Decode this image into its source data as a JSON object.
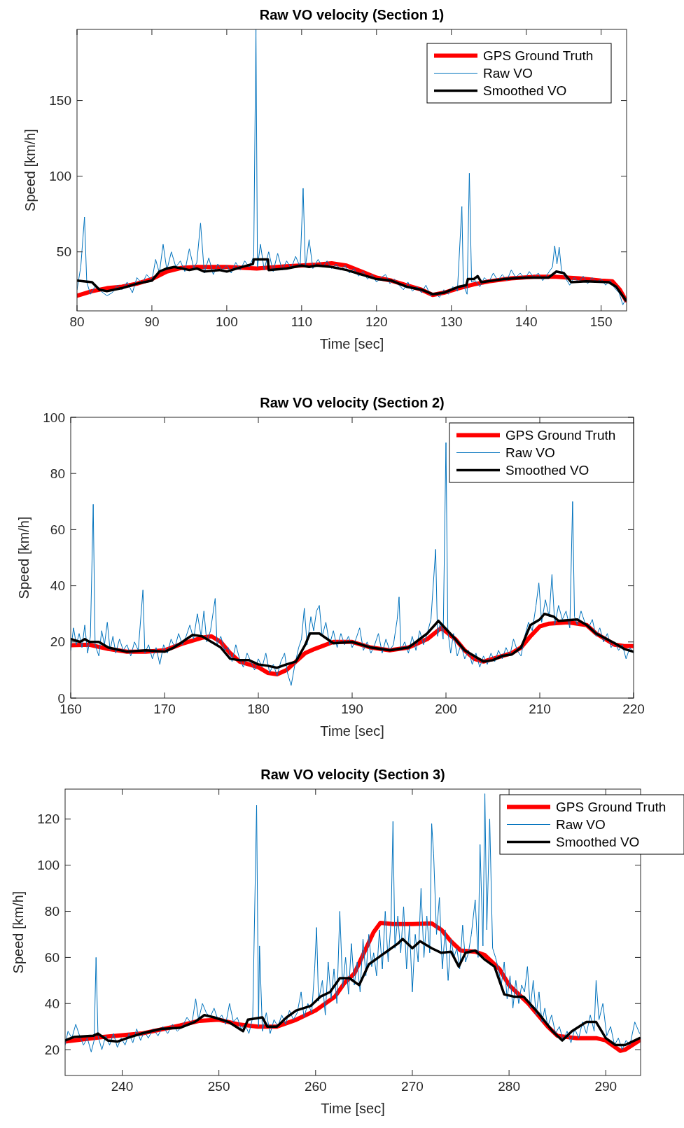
{
  "chart_data": [
    {
      "type": "line",
      "title": "Raw VO velocity (Section 1)",
      "xlabel": "Time [sec]",
      "ylabel": "Speed [km/h]",
      "xlim": [
        80,
        153.4
      ],
      "xticks": [
        80,
        90,
        100,
        110,
        120,
        130,
        140,
        150
      ],
      "ylim": [
        11,
        197
      ],
      "yticks": [
        50,
        100,
        150
      ],
      "legend": "top right",
      "series": [
        {
          "name": "GPS Ground Truth",
          "color": "#ff0000",
          "x": [
            80,
            82,
            84,
            86,
            88,
            90,
            92,
            94,
            96,
            100,
            104,
            108,
            112,
            114,
            116,
            118,
            120,
            122,
            124,
            126,
            127.5,
            129,
            131,
            133,
            135,
            138,
            141,
            144,
            147,
            150,
            151.5,
            152.5,
            153.3
          ],
          "values": [
            21,
            24,
            26,
            27,
            29,
            32,
            37,
            39.5,
            40,
            40,
            39,
            40.5,
            41.5,
            42.5,
            41,
            37,
            33,
            31,
            28,
            25,
            21.5,
            23,
            26,
            28.5,
            30.5,
            32.5,
            33.5,
            33.5,
            32.5,
            31,
            30.5,
            25,
            18
          ]
        },
        {
          "name": "Raw VO",
          "color": "#0072bd",
          "x": [
            80,
            80.5,
            81,
            81.3,
            81.8,
            82.5,
            83.2,
            84,
            84.7,
            85.4,
            86,
            86.7,
            87.4,
            88,
            88.7,
            89.3,
            90,
            90.5,
            91,
            91.5,
            92,
            92.6,
            93.2,
            93.8,
            94.4,
            95,
            95.6,
            96,
            96.5,
            97,
            97.6,
            98.2,
            98.8,
            99.4,
            100,
            100.6,
            101.2,
            101.8,
            102.4,
            103,
            103.6,
            103.9,
            104.1,
            104.5,
            105,
            105.6,
            106.2,
            106.8,
            107.4,
            108,
            108.6,
            109.2,
            109.8,
            110.2,
            110.5,
            111,
            111.5,
            112.2,
            112.8,
            113.4,
            114,
            114.6,
            115.2,
            115.8,
            116.4,
            117,
            117.6,
            118.2,
            118.8,
            119.4,
            120,
            120.6,
            121.2,
            121.8,
            122.4,
            123,
            123.6,
            124.2,
            124.8,
            125.4,
            126,
            126.6,
            127.2,
            127.8,
            128.4,
            129,
            129.6,
            130.2,
            130.8,
            131.4,
            131.6,
            132.1,
            132.4,
            132.7,
            133.2,
            133.8,
            134.4,
            135,
            135.6,
            136.2,
            136.8,
            137.4,
            138,
            138.6,
            139.2,
            139.8,
            140.4,
            141,
            141.6,
            142.2,
            142.8,
            143.5,
            143.8,
            144.1,
            144.4,
            144.7,
            145.2,
            145.8,
            146.4,
            147,
            147.6,
            148.2,
            148.8,
            149.4,
            150,
            150.6,
            151.2,
            151.8,
            152.4,
            152.9,
            153.3
          ],
          "values": [
            25,
            40,
            73,
            30,
            22,
            28,
            24,
            21,
            23,
            28,
            25,
            30,
            23,
            33,
            29,
            35,
            31,
            45,
            36,
            55,
            38,
            50,
            40,
            44,
            37,
            52,
            39,
            43,
            69,
            36,
            46,
            35,
            42,
            38,
            41,
            36,
            43,
            38,
            44,
            40,
            47,
            197,
            40,
            55,
            38,
            50,
            37,
            49,
            38,
            44,
            39,
            47,
            40,
            92,
            40,
            58,
            39,
            45,
            40,
            44,
            39,
            42,
            38,
            41,
            36,
            39,
            34,
            37,
            32,
            35,
            30,
            33,
            35,
            29,
            32,
            28,
            25,
            30,
            24,
            27,
            23,
            28,
            21,
            23,
            20,
            25,
            22,
            27,
            24,
            80,
            28,
            22,
            102,
            30,
            31,
            27,
            33,
            30,
            36,
            31,
            35,
            31,
            38,
            33,
            36,
            32,
            37,
            33,
            36,
            31,
            35,
            40,
            54,
            42,
            53,
            38,
            33,
            28,
            33,
            30,
            34,
            29,
            33,
            30,
            32,
            28,
            31,
            26,
            23,
            15,
            19
          ]
        },
        {
          "name": "Smoothed VO",
          "color": "#000000",
          "x": [
            80,
            82,
            83,
            84,
            86,
            88,
            90,
            91,
            92,
            93,
            95,
            96,
            97,
            99,
            100,
            102,
            103.5,
            103.6,
            105.5,
            105.6,
            108,
            110,
            111,
            112,
            114,
            116,
            118,
            120,
            122,
            124,
            126,
            127.5,
            129,
            131,
            132,
            132.2,
            133,
            133.5,
            134,
            137,
            140,
            143,
            144,
            145,
            146,
            148,
            151,
            152,
            153.3
          ],
          "values": [
            31,
            30,
            25,
            24,
            26,
            29,
            31,
            37,
            39,
            40,
            38,
            39,
            37,
            38,
            37,
            40,
            42,
            45,
            45,
            38,
            39,
            41,
            40,
            41,
            40,
            38,
            35,
            32,
            31,
            27,
            25,
            22,
            23,
            27,
            28,
            32,
            32,
            34,
            30,
            32,
            33,
            33,
            37,
            36,
            30,
            30.5,
            30,
            27,
            18
          ]
        }
      ]
    },
    {
      "type": "line",
      "title": "Raw VO velocity (Section 2)",
      "xlabel": "Time [sec]",
      "ylabel": "Speed [km/h]",
      "xlim": [
        160,
        220
      ],
      "xticks": [
        160,
        170,
        180,
        190,
        200,
        210,
        220
      ],
      "ylim": [
        0,
        100
      ],
      "yticks": [
        0,
        20,
        40,
        60,
        80,
        100
      ],
      "legend": "top right",
      "series": [
        {
          "name": "GPS Ground Truth",
          "color": "#ff0000",
          "x": [
            160,
            162,
            164,
            166,
            168,
            170,
            172,
            174,
            175,
            176,
            177,
            178,
            180,
            181,
            182,
            183,
            184,
            185,
            186,
            188,
            190,
            192,
            194,
            196,
            198,
            199.5,
            201,
            202,
            203,
            204,
            205,
            207,
            208,
            209,
            210,
            211,
            213,
            215,
            216,
            218,
            219,
            220
          ],
          "values": [
            18.8,
            19,
            17.5,
            16.5,
            16.5,
            17,
            19.5,
            21.5,
            22,
            20,
            16,
            13,
            11,
            9,
            8.5,
            10,
            13,
            16,
            17.5,
            20,
            20,
            18,
            17,
            18,
            21,
            25,
            21,
            17,
            14,
            13,
            14,
            16,
            18,
            22,
            25.5,
            26.5,
            27,
            26,
            23,
            19,
            18.5,
            18.5
          ]
        },
        {
          "name": "Raw VO",
          "color": "#0072bd",
          "x": [
            160,
            160.3,
            160.6,
            160.9,
            161.2,
            161.5,
            161.8,
            162.1,
            162.4,
            162.6,
            163,
            163.3,
            163.6,
            163.9,
            164.2,
            164.5,
            164.8,
            165.2,
            165.6,
            166,
            166.4,
            166.8,
            167.2,
            167.7,
            167.9,
            168.3,
            168.7,
            169.1,
            169.5,
            169.9,
            170.3,
            170.7,
            171.1,
            171.5,
            171.9,
            172.3,
            172.7,
            173.1,
            173.5,
            173.9,
            174.2,
            174.5,
            174.9,
            175.4,
            175.6,
            176,
            176.4,
            176.8,
            177.2,
            177.6,
            178,
            178.4,
            178.8,
            179.2,
            179.6,
            180,
            180.4,
            180.8,
            181.2,
            181.6,
            182,
            182.4,
            182.8,
            183.1,
            183.5,
            183.9,
            184.3,
            184.6,
            184.9,
            185.2,
            185.6,
            185.9,
            186.2,
            186.5,
            186.8,
            187.2,
            187.6,
            188,
            188.4,
            188.8,
            189.2,
            189.6,
            190,
            190.4,
            190.8,
            191.2,
            191.6,
            192,
            192.4,
            192.8,
            193.2,
            193.6,
            194,
            194.4,
            194.8,
            195,
            195.2,
            195.6,
            196,
            196.4,
            196.8,
            197.2,
            197.6,
            198,
            198.4,
            198.9,
            199.1,
            199.4,
            199.7,
            200,
            200.2,
            200.5,
            200.8,
            201.2,
            201.6,
            202,
            202.4,
            202.8,
            203.2,
            203.6,
            204,
            204.4,
            204.8,
            205.2,
            205.6,
            206,
            206.4,
            206.8,
            207.2,
            207.6,
            208,
            208.4,
            208.8,
            209.2,
            209.6,
            209.9,
            210.2,
            210.6,
            211,
            211.3,
            211.6,
            212,
            212.4,
            212.8,
            213.2,
            213.5,
            213.7,
            214,
            214.4,
            214.8,
            215.2,
            215.6,
            216,
            216.4,
            216.8,
            217.2,
            217.6,
            218,
            218.4,
            218.8,
            219.2,
            219.6,
            220
          ],
          "values": [
            17,
            25,
            19,
            23,
            18,
            26,
            16,
            22,
            69,
            19,
            15,
            24,
            19,
            27,
            17,
            22,
            16,
            21,
            17,
            19,
            15,
            20,
            17,
            38.5,
            16,
            19,
            14,
            18,
            12,
            19,
            16,
            21,
            18,
            23,
            19,
            22,
            26,
            21,
            30,
            22,
            31,
            20,
            24,
            35.5,
            19,
            22,
            17,
            18,
            13,
            19,
            14,
            11,
            16,
            13,
            10,
            14,
            11,
            16,
            9,
            12,
            8,
            13,
            16,
            9,
            4.5,
            12,
            18,
            21,
            32,
            19,
            29,
            24,
            31,
            33,
            22,
            27,
            19,
            24,
            18,
            23,
            19,
            22,
            18,
            21,
            25,
            17,
            20,
            16,
            19,
            23,
            16,
            21,
            17,
            19,
            28,
            36,
            17,
            20,
            16,
            22,
            17,
            24,
            19,
            23,
            28,
            53,
            22,
            27,
            21,
            91,
            24,
            16,
            23,
            15,
            19,
            14,
            17,
            12,
            16,
            11,
            15,
            12,
            16,
            13,
            17,
            14,
            18,
            15,
            21,
            17,
            15,
            22,
            27,
            24,
            33,
            41,
            27,
            35,
            29,
            44,
            26,
            33,
            28,
            31,
            25,
            70,
            29,
            26,
            31,
            27,
            25,
            28,
            22,
            25,
            20,
            23,
            18,
            20,
            17,
            19,
            14,
            18,
            16
          ]
        },
        {
          "name": "Smoothed VO",
          "color": "#000000",
          "x": [
            160,
            161,
            161.5,
            162,
            163,
            164,
            166,
            168,
            170,
            171,
            173,
            174,
            176,
            177,
            178,
            179,
            180,
            181,
            182,
            183,
            184,
            185,
            185.5,
            186.5,
            188,
            190,
            192,
            194,
            196,
            198,
            199.2,
            201,
            202,
            203,
            204,
            205,
            206,
            207,
            208,
            209,
            210,
            210.5,
            211.5,
            212,
            214,
            215,
            216,
            218,
            219,
            220
          ],
          "values": [
            21,
            20,
            21,
            20,
            20,
            18,
            16.5,
            17,
            16.5,
            18,
            22.5,
            22,
            18,
            14,
            13.5,
            13.5,
            12,
            11.5,
            10.8,
            12,
            13,
            19,
            23,
            23,
            19.5,
            20,
            18,
            17,
            18,
            23,
            27.5,
            21,
            17,
            15,
            13,
            13.5,
            15,
            15.5,
            18,
            26,
            28,
            30,
            29,
            27.5,
            28,
            26,
            23,
            19.5,
            17.5,
            16.5
          ]
        }
      ]
    },
    {
      "type": "line",
      "title": "Raw VO velocity (Section 3)",
      "xlabel": "Time [sec]",
      "ylabel": "Speed [km/h]",
      "xlim": [
        234.1,
        293.6
      ],
      "xticks": [
        240,
        250,
        260,
        270,
        280,
        290
      ],
      "ylim": [
        8.8,
        133
      ],
      "yticks": [
        20,
        40,
        60,
        80,
        100,
        120
      ],
      "legend": "top right",
      "series": [
        {
          "name": "GPS Ground Truth",
          "color": "#ff0000",
          "x": [
            234.1,
            238,
            242,
            246,
            248,
            250,
            252,
            254,
            256,
            258,
            260,
            262,
            263,
            264,
            265,
            266,
            266.7,
            268,
            270,
            272,
            273,
            274,
            275,
            276.5,
            277.5,
            279,
            280,
            282,
            284,
            285,
            287,
            289,
            290,
            291,
            291.5,
            292,
            293.5
          ],
          "values": [
            23.5,
            25.5,
            27,
            30.5,
            32.5,
            33,
            31,
            30,
            30,
            33,
            37,
            43,
            49,
            53,
            62,
            71,
            75,
            74.5,
            74.5,
            74.8,
            72,
            67,
            63,
            62.5,
            61,
            55,
            48,
            40,
            30,
            26,
            25,
            25,
            24,
            21,
            19.5,
            20,
            24
          ]
        },
        {
          "name": "Raw VO",
          "color": "#0072bd",
          "x": [
            234.1,
            234.4,
            234.8,
            235.2,
            235.6,
            236,
            236.4,
            236.8,
            237.1,
            237.3,
            237.5,
            237.9,
            238.3,
            238.7,
            239.1,
            239.5,
            239.9,
            240.3,
            240.7,
            241.1,
            241.5,
            241.9,
            242.3,
            242.7,
            243.2,
            243.7,
            244.2,
            244.7,
            245.2,
            245.7,
            246.2,
            246.7,
            247.2,
            247.6,
            247.9,
            248.3,
            248.7,
            249.1,
            249.5,
            249.9,
            250.3,
            250.7,
            251.1,
            251.5,
            251.9,
            252.3,
            252.7,
            253.1,
            253.5,
            253.9,
            254.1,
            254.2,
            254.5,
            254.9,
            255.3,
            255.7,
            256.1,
            256.5,
            256.9,
            257.3,
            257.7,
            258.1,
            258.5,
            258.8,
            259.2,
            259.6,
            259.9,
            260.1,
            260.3,
            260.7,
            261,
            261.3,
            261.6,
            261.9,
            262.2,
            262.5,
            262.8,
            263.1,
            263.4,
            263.7,
            264,
            264.3,
            264.6,
            264.9,
            265.2,
            265.5,
            265.8,
            266,
            266.3,
            266.6,
            266.9,
            267.2,
            267.5,
            267.8,
            268,
            268.2,
            268.5,
            268.8,
            269.1,
            269.4,
            269.7,
            270,
            270.3,
            270.6,
            270.9,
            271.2,
            271.5,
            271.8,
            272,
            272.2,
            272.5,
            272.8,
            273.1,
            273.4,
            273.7,
            274,
            274.3,
            274.6,
            274.9,
            275.2,
            275.5,
            275.8,
            276.1,
            276.5,
            276.8,
            277,
            277.3,
            277.5,
            277.7,
            278,
            278.3,
            278.6,
            278.9,
            279.2,
            279.5,
            279.8,
            280.1,
            280.4,
            280.7,
            281,
            281.3,
            281.6,
            281.9,
            282.2,
            282.5,
            282.8,
            283.1,
            283.4,
            283.7,
            284,
            284.4,
            284.8,
            285.2,
            285.6,
            286,
            286.4,
            286.8,
            287.2,
            287.6,
            288,
            288.4,
            288.8,
            289,
            289.3,
            289.7,
            290.1,
            290.5,
            290.9,
            291.3,
            291.7,
            292.1,
            292.5,
            293,
            293.5
          ],
          "values": [
            22,
            28,
            25,
            31,
            26,
            22,
            25,
            19,
            24,
            60,
            26,
            20,
            26,
            22,
            27,
            21,
            25,
            22,
            27,
            23,
            29,
            24,
            28,
            25,
            29,
            26,
            30,
            27,
            31,
            28,
            30,
            34,
            31,
            42,
            33,
            40,
            36,
            34,
            38,
            33,
            35,
            31,
            40,
            32,
            34,
            29,
            31,
            27,
            34,
            126,
            30,
            65,
            28,
            36,
            27,
            33,
            30,
            35,
            31,
            37,
            33,
            36,
            45,
            34,
            40,
            36,
            55,
            73,
            41,
            50,
            35,
            58,
            42,
            55,
            40,
            80,
            47,
            60,
            44,
            66,
            48,
            58,
            45,
            68,
            52,
            70,
            56,
            62,
            52,
            72,
            55,
            80,
            58,
            76,
            119,
            64,
            78,
            62,
            82,
            55,
            74,
            45,
            70,
            58,
            90,
            60,
            78,
            62,
            118,
            105,
            70,
            86,
            55,
            72,
            50,
            68,
            60,
            64,
            55,
            74,
            58,
            62,
            70,
            85,
            60,
            109,
            65,
            131,
            72,
            120,
            64,
            60,
            55,
            48,
            58,
            42,
            52,
            38,
            50,
            40,
            48,
            45,
            56,
            38,
            50,
            35,
            45,
            32,
            38,
            30,
            35,
            27,
            30,
            24,
            28,
            23,
            29,
            25,
            32,
            27,
            35,
            28,
            50,
            33,
            40,
            26,
            30,
            22,
            25,
            20,
            24,
            22,
            32,
            27
          ]
        },
        {
          "name": "Smoothed VO",
          "color": "#000000",
          "x": [
            234.1,
            235,
            237,
            237.5,
            238.5,
            239.5,
            240.5,
            242,
            244,
            246,
            247.5,
            248.5,
            249.5,
            251,
            252.5,
            253,
            254.5,
            255,
            256,
            257,
            258,
            259.5,
            260.5,
            261.5,
            262.5,
            263.5,
            264.5,
            265.5,
            266.5,
            267.5,
            268.5,
            269,
            270,
            270.8,
            272,
            273,
            274,
            274.8,
            275.5,
            276.5,
            277.5,
            278.5,
            279.5,
            280.5,
            281.5,
            283,
            284.5,
            285.5,
            286.5,
            288,
            289,
            290,
            291,
            292,
            293.5
          ],
          "values": [
            24,
            25.5,
            26,
            27,
            24,
            23.5,
            25,
            27,
            29,
            29.5,
            32,
            35,
            34,
            32,
            28,
            33,
            34,
            30,
            30,
            34,
            37,
            39,
            43,
            45,
            51,
            51,
            48,
            57,
            60,
            63,
            66,
            68,
            64,
            67,
            64,
            62,
            62.5,
            56,
            62,
            63,
            59,
            56,
            44,
            43,
            43,
            36,
            28,
            24,
            28,
            32,
            32,
            25,
            22,
            22,
            25
          ]
        }
      ]
    }
  ]
}
